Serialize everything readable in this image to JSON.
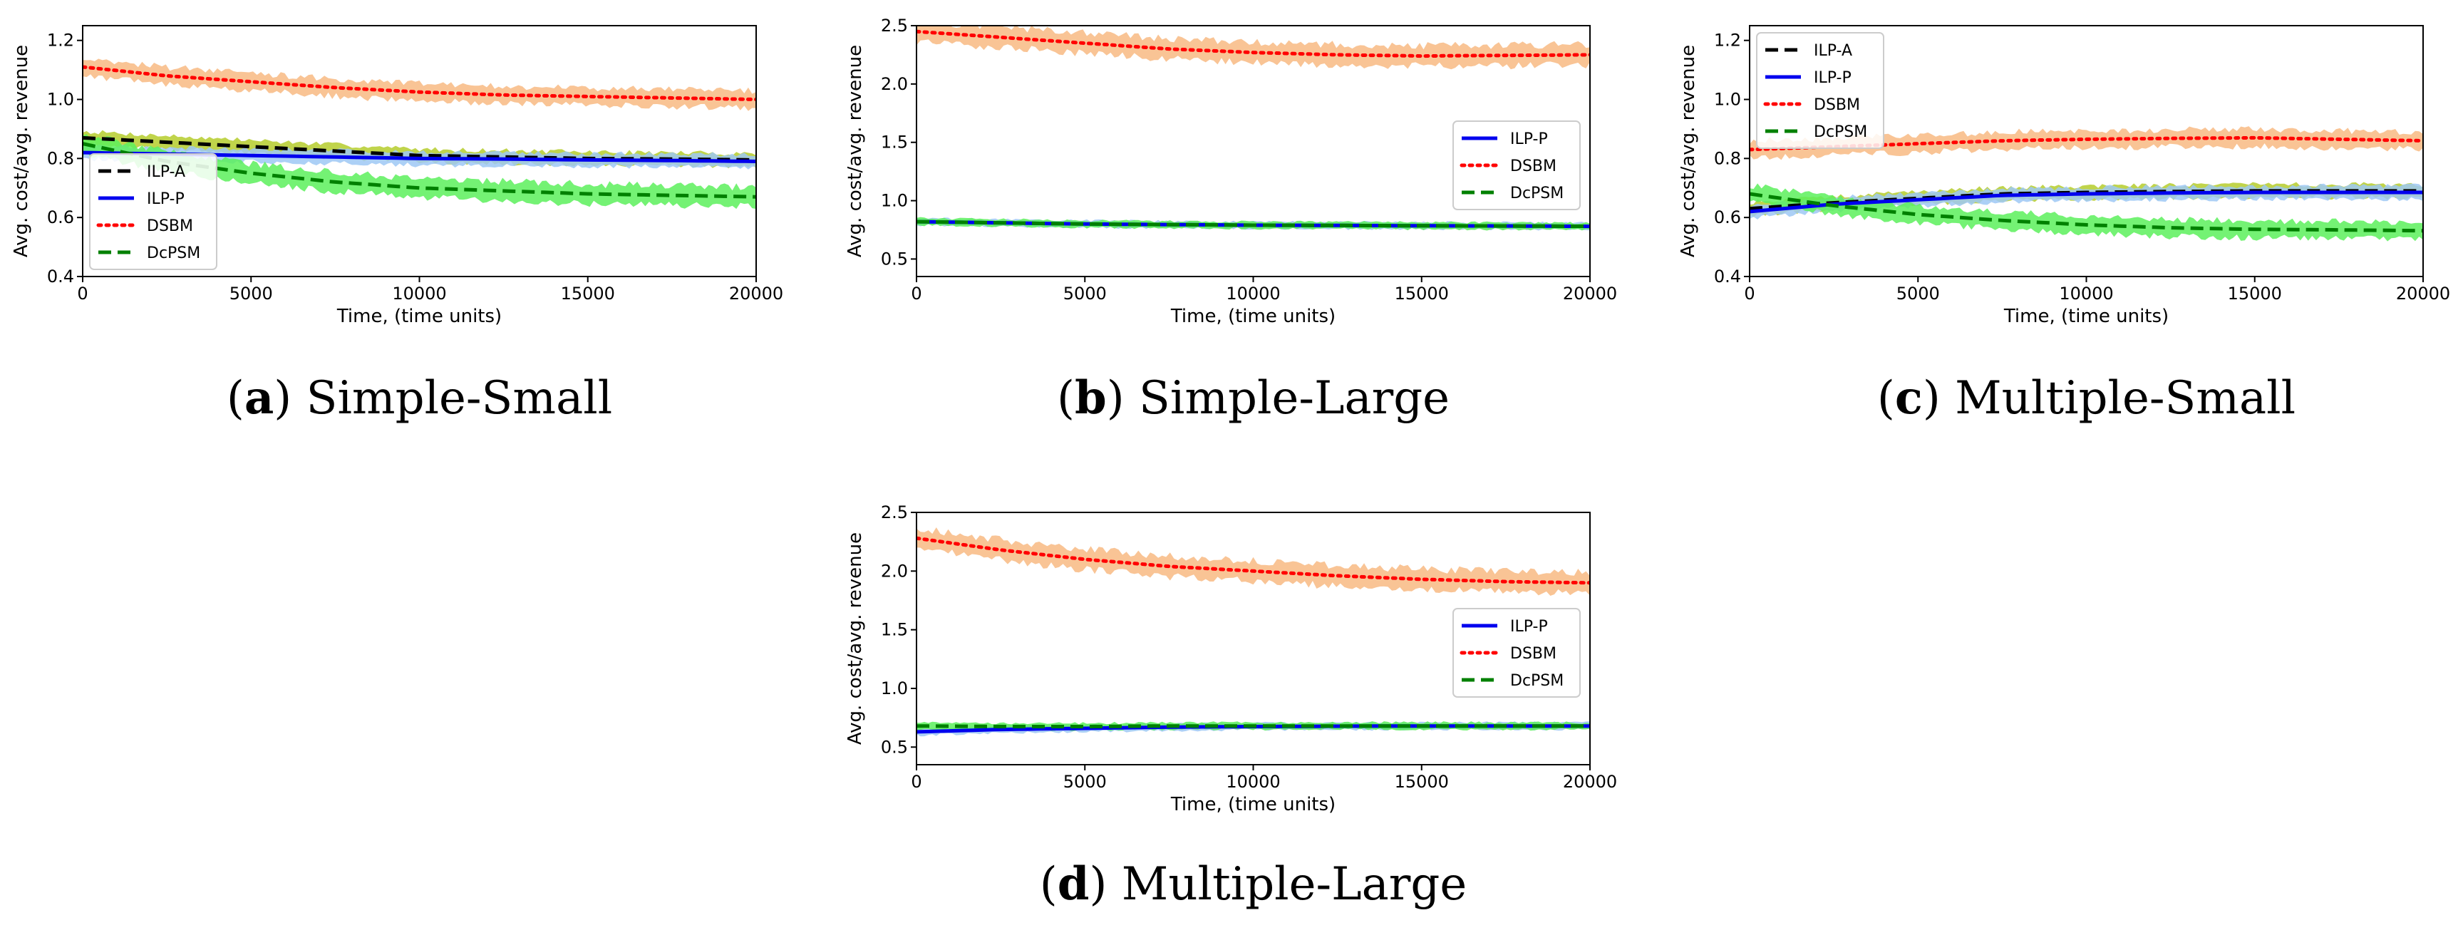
{
  "colors": {
    "ILP-A": "#000000",
    "ILP-P": "#0000ee",
    "DSBM": "#ff0000",
    "DcPSM": "#008000",
    "band_DSBM": "#f8ba82",
    "band_ILP": "#9ec8f5",
    "band_ILPA": "#b5cc2c",
    "band_DcPSM": "#5cf05c"
  },
  "chart_data": [
    {
      "id": "a",
      "type": "line",
      "caption_letter": "a",
      "caption_text": "Simple-Small",
      "xlabel": "Time, (time units)",
      "ylabel": "Avg. cost/avg. revenue",
      "xlim": [
        0,
        20000
      ],
      "ylim": [
        0.4,
        1.25
      ],
      "xticks": [
        "0",
        "5000",
        "10000",
        "15000",
        "20000"
      ],
      "yticks": [
        "0.4",
        "0.6",
        "0.8",
        "1.0",
        "1.2"
      ],
      "ytick_values": [
        0.4,
        0.6,
        0.8,
        1.0,
        1.2
      ],
      "legend": "lower-left",
      "x": [
        0,
        2500,
        5000,
        7500,
        10000,
        12500,
        15000,
        17500,
        20000
      ],
      "series": [
        {
          "name": "ILP-A",
          "style": "dashed",
          "values": [
            0.87,
            0.855,
            0.84,
            0.825,
            0.81,
            0.805,
            0.8,
            0.798,
            0.795
          ],
          "band": 0.03,
          "band_color_key": "band_ILPA"
        },
        {
          "name": "ILP-P",
          "style": "solid",
          "values": [
            0.82,
            0.815,
            0.81,
            0.805,
            0.8,
            0.798,
            0.795,
            0.793,
            0.79
          ],
          "band": 0.03,
          "band_color_key": "band_ILP"
        },
        {
          "name": "DSBM",
          "style": "dotted",
          "values": [
            1.11,
            1.08,
            1.06,
            1.04,
            1.025,
            1.015,
            1.01,
            1.005,
            1.0
          ],
          "band": 0.04,
          "band_color_key": "band_DSBM"
        },
        {
          "name": "DcPSM",
          "style": "dashed",
          "values": [
            0.85,
            0.79,
            0.75,
            0.72,
            0.7,
            0.69,
            0.68,
            0.675,
            0.67
          ],
          "band": 0.045,
          "band_color_key": "band_DcPSM"
        }
      ]
    },
    {
      "id": "b",
      "type": "line",
      "caption_letter": "b",
      "caption_text": "Simple-Large",
      "xlabel": "Time, (time units)",
      "ylabel": "Avg. cost/avg. revenue",
      "xlim": [
        0,
        20000
      ],
      "ylim": [
        0.35,
        2.5
      ],
      "xticks": [
        "0",
        "5000",
        "10000",
        "15000",
        "20000"
      ],
      "yticks": [
        "0.5",
        "1.0",
        "1.5",
        "2.0",
        "2.5"
      ],
      "ytick_values": [
        0.5,
        1.0,
        1.5,
        2.0,
        2.5
      ],
      "legend": "center-right",
      "x": [
        0,
        2500,
        5000,
        7500,
        10000,
        12500,
        15000,
        17500,
        20000
      ],
      "series": [
        {
          "name": "ILP-P",
          "style": "solid",
          "values": [
            0.82,
            0.81,
            0.8,
            0.795,
            0.79,
            0.788,
            0.785,
            0.783,
            0.78
          ],
          "band": 0.04,
          "band_color_key": "band_ILP"
        },
        {
          "name": "DSBM",
          "style": "dotted",
          "values": [
            2.45,
            2.4,
            2.35,
            2.3,
            2.27,
            2.25,
            2.24,
            2.245,
            2.25
          ],
          "band": 0.12,
          "band_color_key": "band_DSBM"
        },
        {
          "name": "DcPSM",
          "style": "dashed",
          "values": [
            0.82,
            0.81,
            0.8,
            0.795,
            0.79,
            0.788,
            0.785,
            0.783,
            0.78
          ],
          "band": 0.04,
          "band_color_key": "band_DcPSM"
        }
      ]
    },
    {
      "id": "c",
      "type": "line",
      "caption_letter": "c",
      "caption_text": "Multiple-Small",
      "xlabel": "Time, (time units)",
      "ylabel": "Avg. cost/avg. revenue",
      "xlim": [
        0,
        20000
      ],
      "ylim": [
        0.4,
        1.25
      ],
      "xticks": [
        "0",
        "5000",
        "10000",
        "15000",
        "20000"
      ],
      "yticks": [
        "0.4",
        "0.6",
        "0.8",
        "1.0",
        "1.2"
      ],
      "ytick_values": [
        0.4,
        0.6,
        0.8,
        1.0,
        1.2
      ],
      "legend": "top-left",
      "x": [
        0,
        2500,
        5000,
        7500,
        10000,
        12500,
        15000,
        17500,
        20000
      ],
      "series": [
        {
          "name": "ILP-A",
          "style": "dashed",
          "values": [
            0.63,
            0.65,
            0.665,
            0.68,
            0.685,
            0.688,
            0.69,
            0.69,
            0.69
          ],
          "band": 0.03,
          "band_color_key": "band_ILPA"
        },
        {
          "name": "ILP-P",
          "style": "solid",
          "values": [
            0.62,
            0.645,
            0.66,
            0.675,
            0.68,
            0.683,
            0.685,
            0.685,
            0.685
          ],
          "band": 0.03,
          "band_color_key": "band_ILP"
        },
        {
          "name": "DSBM",
          "style": "dotted",
          "values": [
            0.83,
            0.84,
            0.85,
            0.86,
            0.865,
            0.868,
            0.87,
            0.865,
            0.86
          ],
          "band": 0.04,
          "band_color_key": "band_DSBM"
        },
        {
          "name": "DcPSM",
          "style": "dashed",
          "values": [
            0.68,
            0.64,
            0.61,
            0.59,
            0.575,
            0.565,
            0.56,
            0.558,
            0.555
          ],
          "band": 0.04,
          "band_color_key": "band_DcPSM"
        }
      ]
    },
    {
      "id": "d",
      "type": "line",
      "caption_letter": "d",
      "caption_text": "Multiple-Large",
      "xlabel": "Time, (time units)",
      "ylabel": "Avg. cost/avg. revenue",
      "xlim": [
        0,
        20000
      ],
      "ylim": [
        0.35,
        2.5
      ],
      "xticks": [
        "0",
        "5000",
        "10000",
        "15000",
        "20000"
      ],
      "yticks": [
        "0.5",
        "1.0",
        "1.5",
        "2.0",
        "2.5"
      ],
      "ytick_values": [
        0.5,
        1.0,
        1.5,
        2.0,
        2.5
      ],
      "legend": "center-right",
      "x": [
        0,
        2500,
        5000,
        7500,
        10000,
        12500,
        15000,
        17500,
        20000
      ],
      "series": [
        {
          "name": "ILP-P",
          "style": "solid",
          "values": [
            0.63,
            0.65,
            0.66,
            0.67,
            0.675,
            0.678,
            0.68,
            0.68,
            0.68
          ],
          "band": 0.04,
          "band_color_key": "band_ILP"
        },
        {
          "name": "DSBM",
          "style": "dotted",
          "values": [
            2.28,
            2.18,
            2.1,
            2.04,
            2.0,
            1.96,
            1.93,
            1.91,
            1.9
          ],
          "band": 0.12,
          "band_color_key": "band_DSBM"
        },
        {
          "name": "DcPSM",
          "style": "dashed",
          "values": [
            0.68,
            0.675,
            0.675,
            0.68,
            0.68,
            0.68,
            0.68,
            0.68,
            0.68
          ],
          "band": 0.04,
          "band_color_key": "band_DcPSM"
        }
      ]
    }
  ]
}
